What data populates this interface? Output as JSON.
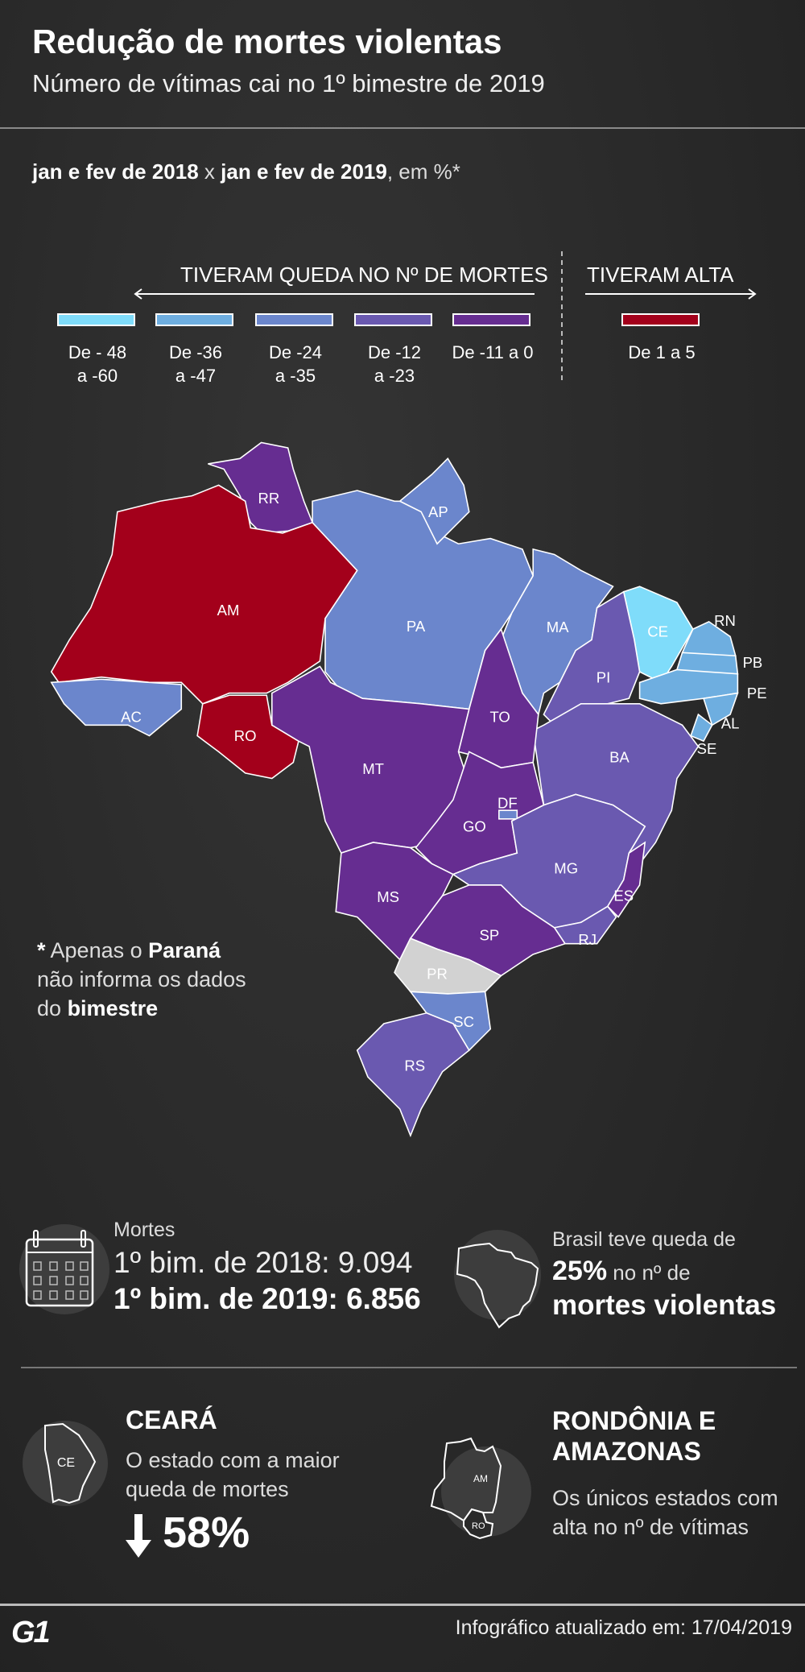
{
  "header": {
    "title": "Redução de mortes violentas",
    "subtitle": "Número de vítimas cai no 1º bimestre de 2019"
  },
  "comparison": {
    "period_a": "jan e fev de 2018",
    "sep": "x",
    "period_b": "jan e fev de 2019",
    "unit": ", em %*"
  },
  "legend": {
    "fall_header": "TIVERAM QUEDA NO Nº DE MORTES",
    "rise_header": "TIVERAM ALTA",
    "items": [
      {
        "line1": "De - 48",
        "line2": "a -60",
        "color": "#7fdcfa"
      },
      {
        "line1": "De -36",
        "line2": "a -47",
        "color": "#6eaee0"
      },
      {
        "line1": "De -24",
        "line2": "a -35",
        "color": "#6b86cc"
      },
      {
        "line1": "De -12",
        "line2": "a -23",
        "color": "#6a59b0"
      },
      {
        "line1": "De -11 a 0",
        "line2": "",
        "color": "#662d91"
      },
      {
        "line1": "De 1 a 5",
        "line2": "",
        "color": "#a3001b"
      }
    ],
    "no_data_color": "#d2d2d2"
  },
  "map": {
    "states": [
      {
        "abbr": "RR",
        "cat": 4
      },
      {
        "abbr": "AM",
        "cat": 5
      },
      {
        "abbr": "AC",
        "cat": 2
      },
      {
        "abbr": "RO",
        "cat": 5
      },
      {
        "abbr": "PA",
        "cat": 2
      },
      {
        "abbr": "AP",
        "cat": 2
      },
      {
        "abbr": "MA",
        "cat": 2
      },
      {
        "abbr": "CE",
        "cat": 0
      },
      {
        "abbr": "PI",
        "cat": 3
      },
      {
        "abbr": "RN",
        "cat": 1
      },
      {
        "abbr": "PB",
        "cat": 1
      },
      {
        "abbr": "PE",
        "cat": 1
      },
      {
        "abbr": "AL",
        "cat": 1
      },
      {
        "abbr": "SE",
        "cat": 1
      },
      {
        "abbr": "BA",
        "cat": 3
      },
      {
        "abbr": "TO",
        "cat": 4
      },
      {
        "abbr": "MT",
        "cat": 4
      },
      {
        "abbr": "GO",
        "cat": 4
      },
      {
        "abbr": "DF",
        "cat": 2
      },
      {
        "abbr": "MS",
        "cat": 4
      },
      {
        "abbr": "MG",
        "cat": 3
      },
      {
        "abbr": "ES",
        "cat": 4
      },
      {
        "abbr": "RJ",
        "cat": 3
      },
      {
        "abbr": "SP",
        "cat": 4
      },
      {
        "abbr": "PR",
        "cat": null
      },
      {
        "abbr": "SC",
        "cat": 2
      },
      {
        "abbr": "RS",
        "cat": 3
      }
    ]
  },
  "note": {
    "star": "*",
    "t1": "Apenas o",
    "b1": "Paraná",
    "t2": "não informa os dados",
    "t3": "do",
    "b3": "bimestre"
  },
  "stats": {
    "label": "Mortes",
    "y2018": "1º bim. de 2018: 9.094",
    "y2019": "1º bim. de 2019: 6.856",
    "brasil_l1": "Brasil teve queda de",
    "brasil_pct": "25%",
    "brasil_l2": "no nº de",
    "brasil_l3": "mortes violentas"
  },
  "highlights": {
    "ce_title": "CEARÁ",
    "ce_icon_label": "CE",
    "ce_l1": "O estado com a maior",
    "ce_l2": "queda de mortes",
    "ce_pct": "58%",
    "roam_title1": "RONDÔNIA E",
    "roam_title2": "AMAZONAS",
    "roam_am": "AM",
    "roam_ro": "RO",
    "roam_l1": "Os únicos estados com",
    "roam_l2": "alta no nº de vítimas"
  },
  "footer": {
    "logo": "G1",
    "updated": "Infográfico atualizado em: 17/04/2019"
  }
}
